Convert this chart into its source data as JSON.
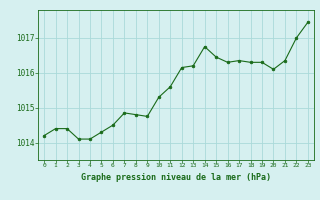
{
  "x": [
    0,
    1,
    2,
    3,
    4,
    5,
    6,
    7,
    8,
    9,
    10,
    11,
    12,
    13,
    14,
    15,
    16,
    17,
    18,
    19,
    20,
    21,
    22,
    23
  ],
  "y": [
    1014.2,
    1014.4,
    1014.4,
    1014.1,
    1014.1,
    1014.3,
    1014.5,
    1014.85,
    1014.8,
    1014.75,
    1015.3,
    1015.6,
    1016.15,
    1016.2,
    1016.75,
    1016.45,
    1016.3,
    1016.35,
    1016.3,
    1016.3,
    1016.1,
    1016.35,
    1017.0,
    1017.45
  ],
  "line_color": "#1a6b1a",
  "marker_color": "#1a6b1a",
  "bg_color": "#d6f0f0",
  "grid_color": "#aadada",
  "label_color": "#1a6b1a",
  "xlabel": "Graphe pression niveau de la mer (hPa)",
  "ylim": [
    1013.5,
    1017.8
  ],
  "yticks": [
    1014,
    1015,
    1016,
    1017
  ],
  "xticks": [
    0,
    1,
    2,
    3,
    4,
    5,
    6,
    7,
    8,
    9,
    10,
    11,
    12,
    13,
    14,
    15,
    16,
    17,
    18,
    19,
    20,
    21,
    22,
    23
  ]
}
